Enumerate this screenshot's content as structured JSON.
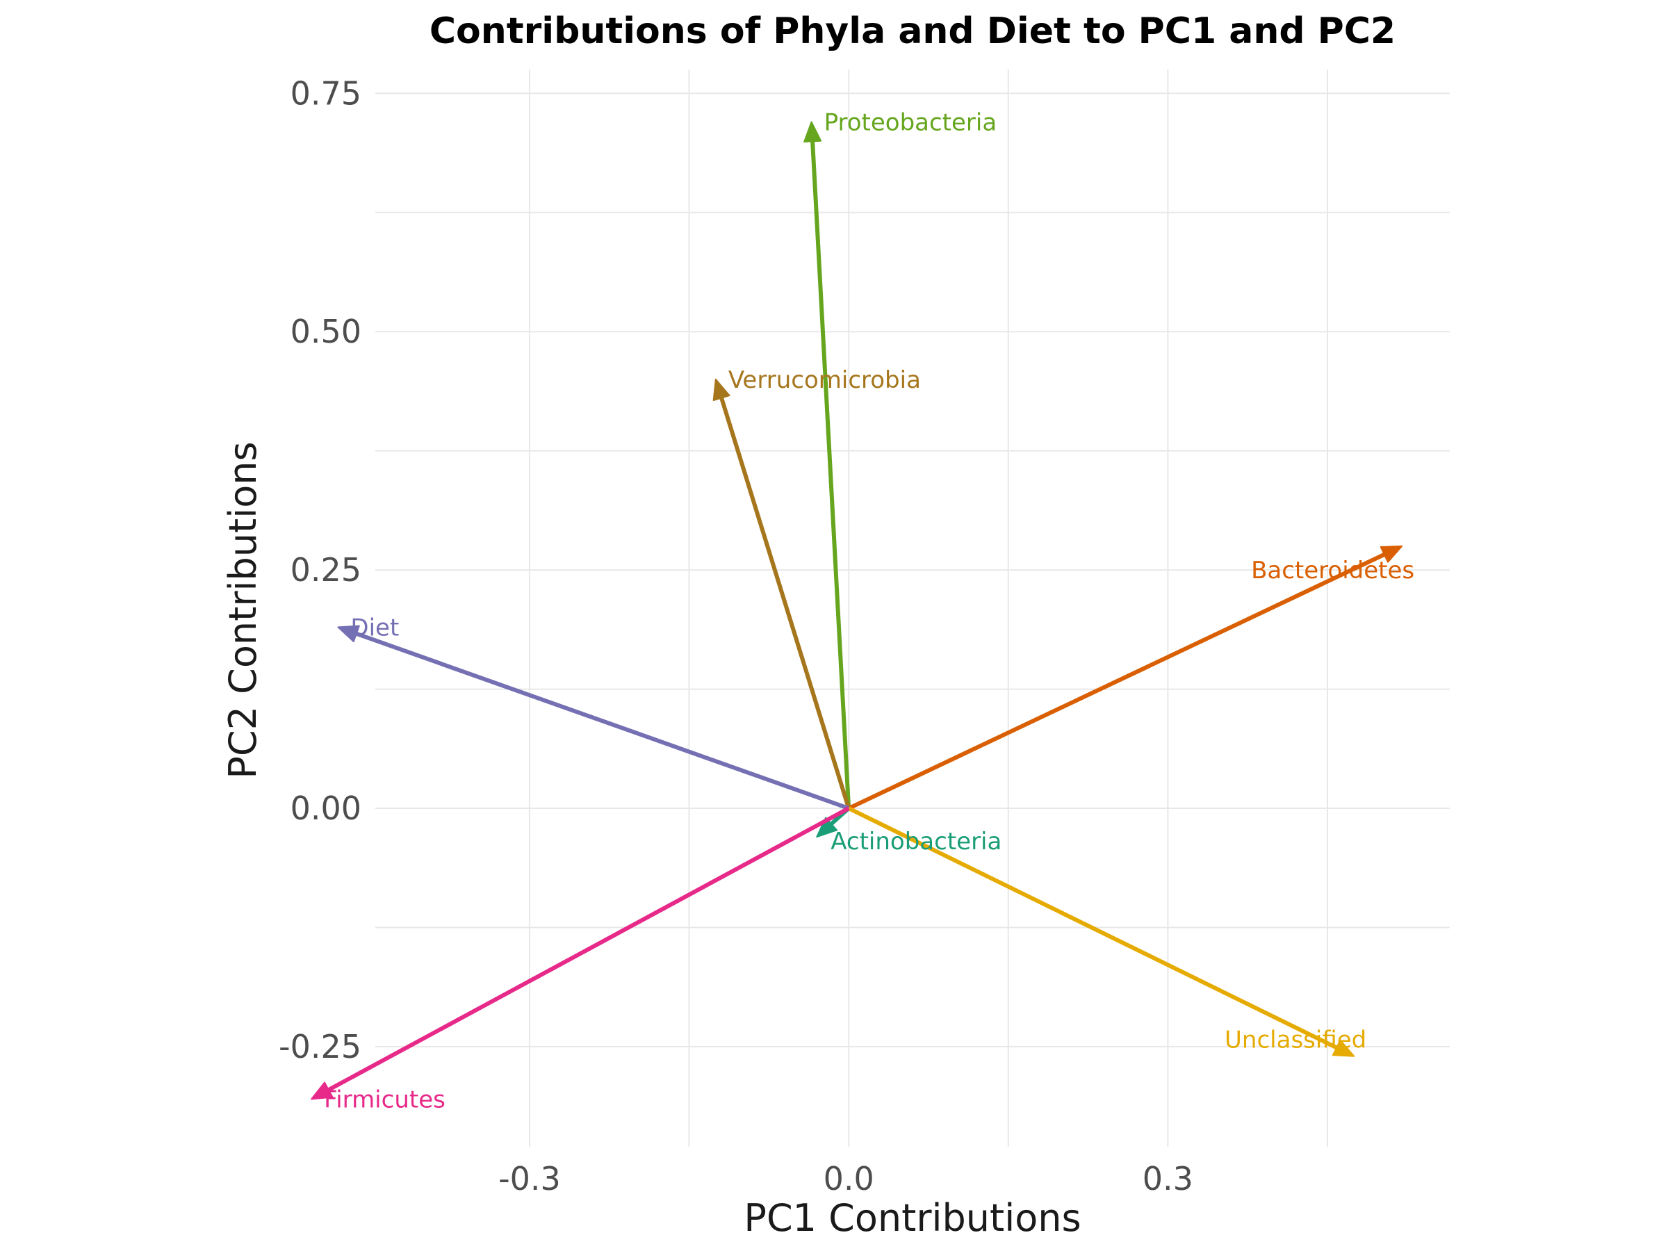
{
  "chart_data": {
    "type": "biplot",
    "title": "Contributions of Phyla and Diet to PC1 and PC2",
    "xlabel": "PC1 Contributions",
    "ylabel": "PC2 Contributions",
    "xlim": [
      -0.445,
      0.565
    ],
    "ylim": [
      -0.355,
      0.775
    ],
    "x_ticks": [
      -0.3,
      0.0,
      0.3
    ],
    "x_tick_labels": [
      "-0.3",
      "0.0",
      "0.3"
    ],
    "y_ticks": [
      -0.25,
      0.0,
      0.25,
      0.5,
      0.75
    ],
    "y_tick_labels": [
      "-0.25",
      "0.00",
      "0.25",
      "0.50",
      "0.75"
    ],
    "grid": true,
    "legend": "none",
    "origin": [
      0,
      0
    ],
    "vectors": [
      {
        "name": "Proteobacteria",
        "x": -0.035,
        "y": 0.72,
        "color": "#66a61e"
      },
      {
        "name": "Verrucomicrobia",
        "x": -0.125,
        "y": 0.45,
        "color": "#a6761d"
      },
      {
        "name": "Bacteroidetes",
        "x": 0.52,
        "y": 0.275,
        "color": "#d95f02"
      },
      {
        "name": "Diet",
        "x": -0.48,
        "y": 0.19,
        "color": "#7570b3"
      },
      {
        "name": "Actinobacteria",
        "x": -0.03,
        "y": -0.03,
        "color": "#1b9e77"
      },
      {
        "name": "Unclassified",
        "x": 0.475,
        "y": -0.26,
        "color": "#e6ab02"
      },
      {
        "name": "Firmicutes",
        "x": -0.505,
        "y": -0.305,
        "color": "#e7298a"
      }
    ]
  }
}
